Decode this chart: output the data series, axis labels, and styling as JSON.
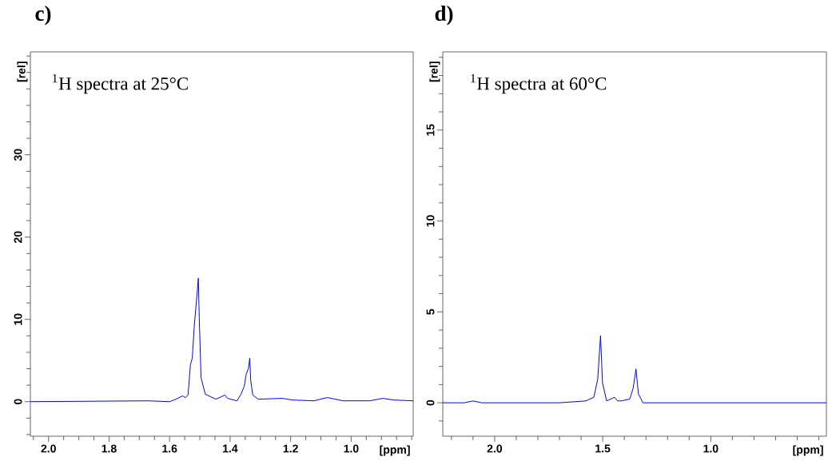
{
  "chart_data": [
    {
      "type": "line",
      "title": "c)",
      "xlabel": "[ppm]",
      "ylabel": "[rel]",
      "annotations": [
        "$^{1}$H spectra at 25°C"
      ],
      "color": "#0000ff",
      "x": [
        2.06,
        1.67,
        1.6,
        1.579,
        1.557,
        1.548,
        1.539,
        1.531,
        1.525,
        1.518,
        1.511,
        1.505,
        1.502,
        1.496,
        1.482,
        1.447,
        1.417,
        1.408,
        1.377,
        1.364,
        1.353,
        1.347,
        1.339,
        1.335,
        1.332,
        1.325,
        1.307,
        1.228,
        1.193,
        1.123,
        1.079,
        1.026,
        0.939,
        0.895,
        0.86,
        0.795
      ],
      "values": [
        0,
        0.1,
        0,
        0.3,
        0.7,
        0.5,
        0.8,
        4.5,
        5.3,
        9.4,
        12.3,
        15.0,
        10.3,
        2.9,
        0.9,
        0.3,
        0.8,
        0.4,
        0.1,
        0.9,
        1.9,
        3.3,
        4.1,
        5.3,
        2.6,
        0.8,
        0.3,
        0.4,
        0.2,
        0.1,
        0.5,
        0.1,
        0.1,
        0.4,
        0.2,
        0.1
      ],
      "xlim": [
        2.06,
        0.795
      ],
      "ylim": [
        -4.2,
        42.5
      ],
      "xticks": [
        {
          "value": 2.05,
          "label": null
        },
        {
          "value": 2.0,
          "label": "2.0"
        },
        {
          "value": 1.95,
          "label": null
        },
        {
          "value": 1.9,
          "label": null
        },
        {
          "value": 1.85,
          "label": null
        },
        {
          "value": 1.8,
          "label": "1.8"
        },
        {
          "value": 1.75,
          "label": null
        },
        {
          "value": 1.7,
          "label": null
        },
        {
          "value": 1.65,
          "label": null
        },
        {
          "value": 1.6,
          "label": "1.6"
        },
        {
          "value": 1.55,
          "label": null
        },
        {
          "value": 1.5,
          "label": null
        },
        {
          "value": 1.45,
          "label": null
        },
        {
          "value": 1.4,
          "label": "1.4"
        },
        {
          "value": 1.35,
          "label": null
        },
        {
          "value": 1.3,
          "label": null
        },
        {
          "value": 1.25,
          "label": null
        },
        {
          "value": 1.2,
          "label": "1.2"
        },
        {
          "value": 1.15,
          "label": null
        },
        {
          "value": 1.1,
          "label": null
        },
        {
          "value": 1.05,
          "label": null
        },
        {
          "value": 1.0,
          "label": "1.0"
        },
        {
          "value": 0.95,
          "label": null
        },
        {
          "value": 0.9,
          "label": null
        },
        {
          "value": 0.85,
          "label": null
        },
        {
          "value": 0.8,
          "label": null
        }
      ],
      "yticks": [
        {
          "value": -4,
          "label": null
        },
        {
          "value": -2,
          "label": null
        },
        0,
        {
          "value": 2,
          "label": null
        },
        {
          "value": 4,
          "label": null
        },
        {
          "value": 6,
          "label": null
        },
        {
          "value": 8,
          "label": null
        },
        10,
        {
          "value": 12,
          "label": null
        },
        {
          "value": 14,
          "label": null
        },
        {
          "value": 16,
          "label": null
        },
        {
          "value": 18,
          "label": null
        },
        20,
        {
          "value": 22,
          "label": null
        },
        {
          "value": 24,
          "label": null
        },
        {
          "value": 26,
          "label": null
        },
        {
          "value": 28,
          "label": null
        },
        30,
        {
          "value": 32,
          "label": null
        },
        {
          "value": 34,
          "label": null
        },
        {
          "value": 36,
          "label": null
        },
        {
          "value": 38,
          "label": null
        },
        {
          "value": 40,
          "label": null
        },
        {
          "value": 42,
          "label": null
        }
      ]
    },
    {
      "type": "line",
      "title": "d)",
      "xlabel": "[ppm]",
      "ylabel": "[rel]",
      "annotations": [
        "$^{1}$H spectra at 60°C"
      ],
      "color": "#0000ff",
      "x": [
        2.24,
        2.14,
        2.1,
        2.06,
        1.7,
        1.578,
        1.541,
        1.523,
        1.51,
        1.501,
        1.482,
        1.445,
        1.431,
        1.416,
        1.375,
        1.359,
        1.346,
        1.335,
        1.314,
        0.465
      ],
      "values": [
        0,
        0,
        0.1,
        0,
        0,
        0.1,
        0.3,
        1.3,
        3.7,
        1.1,
        0.1,
        0.3,
        0.1,
        0.1,
        0.2,
        0.8,
        1.86,
        0.5,
        0,
        0
      ],
      "xlim": [
        2.24,
        0.465
      ],
      "ylim": [
        -1.84,
        19.3
      ],
      "xticks": [
        {
          "value": 2.2,
          "label": null
        },
        {
          "value": 2.1,
          "label": null
        },
        {
          "value": 2.0,
          "label": "2.0"
        },
        {
          "value": 1.9,
          "label": null
        },
        {
          "value": 1.8,
          "label": null
        },
        {
          "value": 1.7,
          "label": null
        },
        {
          "value": 1.6,
          "label": null
        },
        {
          "value": 1.5,
          "label": "1.5"
        },
        {
          "value": 1.4,
          "label": null
        },
        {
          "value": 1.3,
          "label": null
        },
        {
          "value": 1.2,
          "label": null
        },
        {
          "value": 1.1,
          "label": null
        },
        {
          "value": 1.0,
          "label": "1.0"
        },
        {
          "value": 0.9,
          "label": null
        },
        {
          "value": 0.8,
          "label": null
        },
        {
          "value": 0.7,
          "label": null
        },
        {
          "value": 0.6,
          "label": null
        },
        {
          "value": 0.5,
          "label": null
        }
      ],
      "yticks": [
        {
          "value": -1,
          "label": null
        },
        0,
        {
          "value": 1,
          "label": null
        },
        {
          "value": 2,
          "label": null
        },
        {
          "value": 3,
          "label": null
        },
        {
          "value": 4,
          "label": null
        },
        5,
        {
          "value": 6,
          "label": null
        },
        {
          "value": 7,
          "label": null
        },
        {
          "value": 8,
          "label": null
        },
        {
          "value": 9,
          "label": null
        },
        10,
        {
          "value": 11,
          "label": null
        },
        {
          "value": 12,
          "label": null
        },
        {
          "value": 13,
          "label": null
        },
        {
          "value": 14,
          "label": null
        },
        15,
        {
          "value": 16,
          "label": null
        },
        {
          "value": 17,
          "label": null
        },
        {
          "value": 18,
          "label": null
        },
        {
          "value": 19,
          "label": null
        }
      ]
    }
  ]
}
